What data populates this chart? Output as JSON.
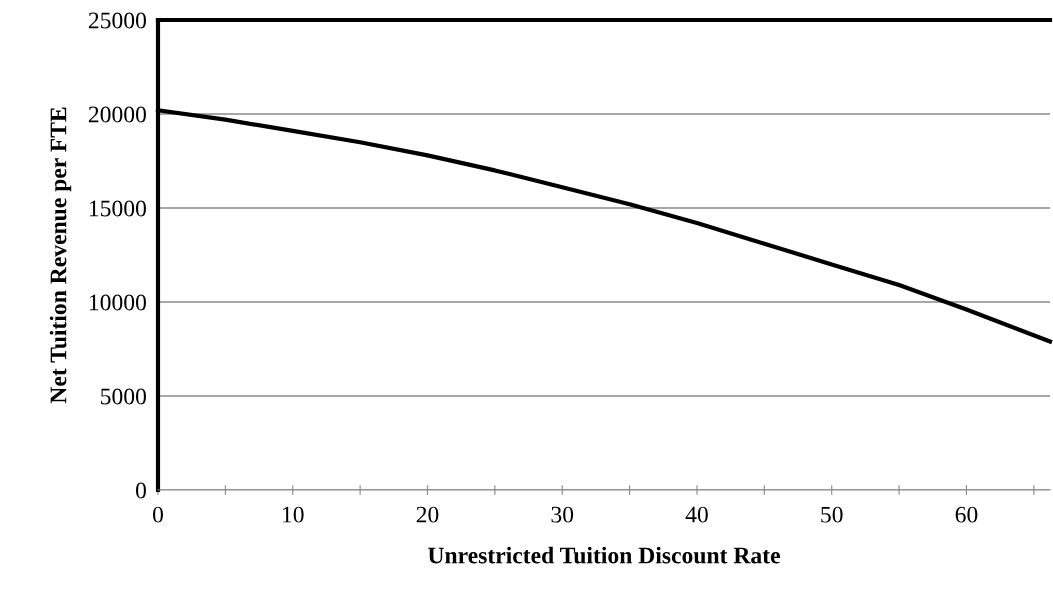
{
  "chart_data": {
    "type": "line",
    "xlabel": "Unrestricted Tuition Discount Rate",
    "ylabel": "Net Tuition Revenue per FTE",
    "x": [
      0,
      5,
      10,
      15,
      20,
      25,
      30,
      35,
      40,
      45,
      50,
      55,
      60,
      66.2
    ],
    "series": [
      {
        "color": "#000000",
        "values": [
          20200,
          19700,
          19100,
          18500,
          17800,
          17000,
          16100,
          15200,
          14200,
          13100,
          12000,
          10900,
          9600,
          7900
        ]
      }
    ],
    "xlim": [
      0,
      66.2
    ],
    "xticks": [
      0,
      {
        "value": 5,
        "label": null
      },
      10,
      {
        "value": 15,
        "label": null
      },
      20,
      {
        "value": 25,
        "label": null
      },
      30,
      {
        "value": 35,
        "label": null
      },
      40,
      {
        "value": 45,
        "label": null
      },
      50,
      {
        "value": 55,
        "label": null
      },
      60,
      {
        "value": 65,
        "label": null
      }
    ],
    "ylim": [
      0,
      25000
    ],
    "yticks": [
      0,
      5000,
      10000,
      15000,
      20000,
      25000
    ],
    "grid": "y",
    "marker": "none",
    "line_style": "solid"
  }
}
